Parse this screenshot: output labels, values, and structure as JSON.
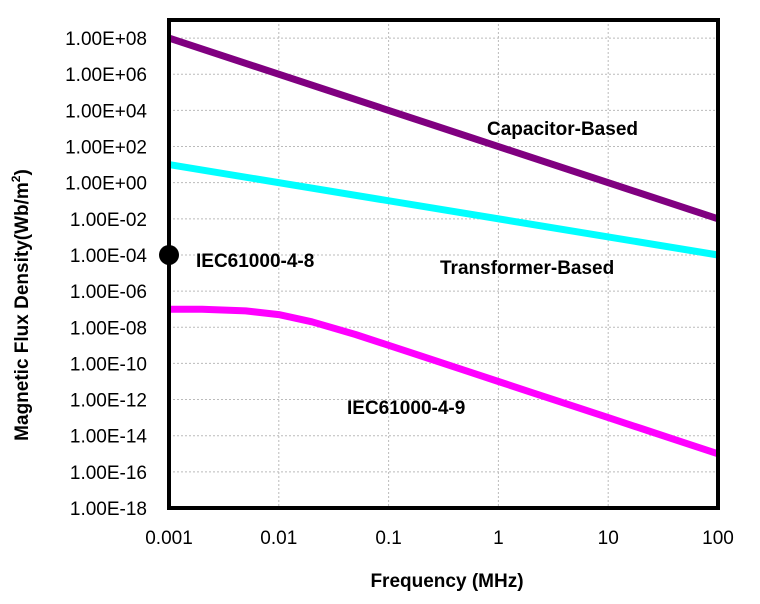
{
  "chart_data": {
    "type": "line",
    "title": "",
    "xlabel": "Frequency (MHz)",
    "ylabel": "Magnetic Flux Density(Wb/m²)",
    "ylabel_main": "Magnetic Flux Density(Wb/m",
    "ylabel_sup": "2",
    "ylabel_close": ")",
    "x_scale": "log",
    "y_scale": "log",
    "xlim": [
      0.001,
      100
    ],
    "ylim": [
      1e-18,
      1000000000.0
    ],
    "grid": true,
    "x_ticks": [
      0.001,
      0.01,
      0.1,
      1,
      10,
      100
    ],
    "x_tick_labels": [
      "0.001",
      "0.01",
      "0.1",
      "1",
      "10",
      "100"
    ],
    "y_ticks": [
      100000000.0,
      1000000.0,
      10000.0,
      100.0,
      1,
      0.01,
      0.0001,
      1e-06,
      1e-08,
      1e-10,
      1e-12,
      1e-14,
      1e-16,
      1e-18
    ],
    "y_tick_labels": [
      "1.00E+08",
      "1.00E+06",
      "1.00E+04",
      "1.00E+02",
      "1.00E+00",
      "1.00E-02",
      "1.00E-04",
      "1.00E-06",
      "1.00E-08",
      "1.00E-10",
      "1.00E-12",
      "1.00E-14",
      "1.00E-16",
      "1.00E-18"
    ],
    "series": [
      {
        "name": "Capacitor-Based",
        "color": "#800080",
        "x": [
          0.001,
          100
        ],
        "y": [
          100000000.0,
          0.01
        ]
      },
      {
        "name": "Transformer-Based",
        "color": "#00FFFF",
        "x": [
          0.001,
          100
        ],
        "y": [
          10,
          0.0001
        ]
      },
      {
        "name": "IEC61000-4-9",
        "color": "#FF00FF",
        "x": [
          0.001,
          0.002,
          0.005,
          0.01,
          0.02,
          0.05,
          0.1,
          0.2,
          0.5,
          1,
          2,
          5,
          10,
          20,
          50,
          100
        ],
        "y": [
          1e-07,
          9.9e-08,
          8e-08,
          5e-08,
          2e-08,
          4e-09,
          1e-09,
          2.5e-10,
          4e-11,
          1e-11,
          2.5e-12,
          4e-13,
          1e-13,
          2.5e-14,
          4e-15,
          1e-15
        ]
      }
    ],
    "points": [
      {
        "name": "IEC61000-4-8",
        "color": "#000000",
        "x": 0.001,
        "y": 0.0001
      }
    ]
  }
}
